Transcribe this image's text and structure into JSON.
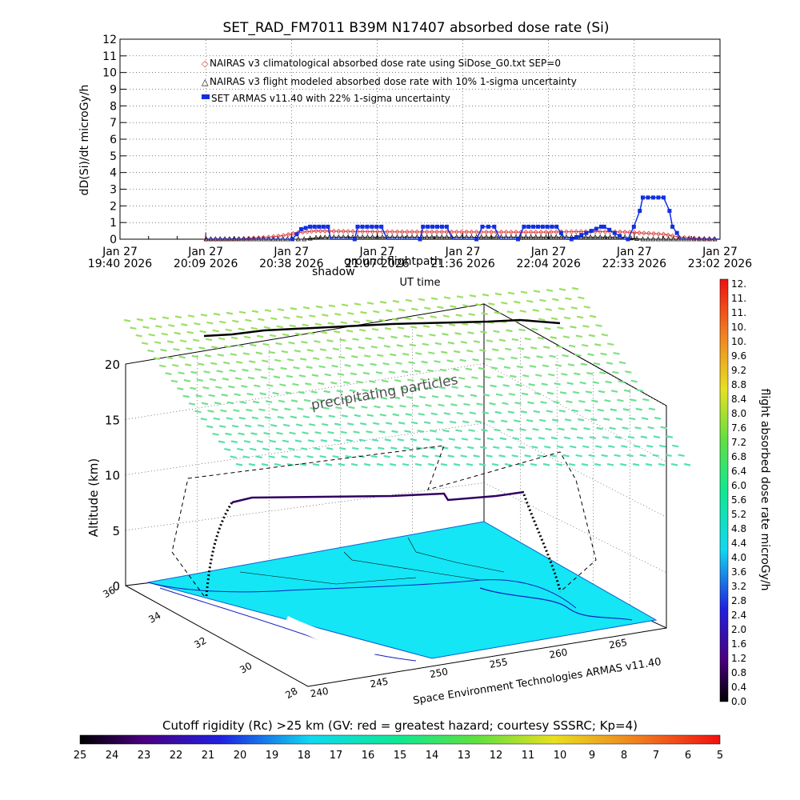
{
  "chart_data": [
    {
      "type": "line",
      "title": "SET_RAD_FM7011  B39M N17407 absorbed dose rate (Si)",
      "xlabel": "UT time",
      "ylabel": "dD(Si)/dt microGy/h",
      "ylim": [
        0,
        12
      ],
      "yticks": [
        "0",
        "1",
        "2",
        "3",
        "4",
        "5",
        "6",
        "7",
        "8",
        "9",
        "10",
        "11",
        "12"
      ],
      "xticks": [
        {
          "date": "Jan 27",
          "time": "19:40 2026"
        },
        {
          "date": "Jan 27",
          "time": "20:09 2026"
        },
        {
          "date": "Jan 27",
          "time": "20:38 2026"
        },
        {
          "date": "Jan 27",
          "time": "21:07 2026"
        },
        {
          "date": "Jan 27",
          "time": "21:36 2026"
        },
        {
          "date": "Jan 27",
          "time": "22:04 2026"
        },
        {
          "date": "Jan 27",
          "time": "22:33 2026"
        },
        {
          "date": "Jan 27",
          "time": "23:02 2026"
        }
      ],
      "xrange_min": [
        0,
        202
      ],
      "overlay_labels": [
        "shadow",
        "ground flightpath"
      ],
      "series": [
        {
          "name": "NAIRAS v3 climatological absorbed dose rate using SiDose_G0.txt SEP=0",
          "color": "#e04040",
          "marker": "diamond",
          "x": [
            29,
            40,
            50,
            55,
            60,
            66,
            72,
            80,
            95,
            110,
            125,
            140,
            152,
            160,
            170,
            178,
            183,
            186,
            190,
            195,
            200,
            202
          ],
          "values": [
            0.0,
            0.02,
            0.12,
            0.22,
            0.4,
            0.5,
            0.48,
            0.46,
            0.44,
            0.44,
            0.43,
            0.42,
            0.45,
            0.46,
            0.43,
            0.35,
            0.3,
            0.2,
            0.1,
            0.04,
            0.01,
            0.0
          ]
        },
        {
          "name": "NAIRAS v3 flight modeled absorbed dose rate with 10% 1-sigma uncertainty",
          "color": "#000000",
          "marker": "triangle",
          "x": [
            29,
            40,
            50,
            58,
            62,
            66,
            72,
            80,
            95,
            110,
            125,
            140,
            152,
            160,
            170,
            172,
            176,
            183,
            188,
            195,
            202
          ],
          "values": [
            0.0,
            0.0,
            0.0,
            0.0,
            0.0,
            0.08,
            0.12,
            0.12,
            0.12,
            0.12,
            0.12,
            0.12,
            0.12,
            0.12,
            0.12,
            0.05,
            0.0,
            0.0,
            0.0,
            0.0,
            0.0
          ]
        },
        {
          "name": "SET ARMAS v11.40 with 22% 1-sigma uncertainty",
          "color": "#1030e0",
          "marker": "square",
          "x": [
            29,
            58,
            61,
            64,
            70,
            71,
            79,
            80,
            88,
            90,
            101,
            102,
            110,
            112,
            120,
            122,
            126,
            128,
            134,
            136,
            147,
            150,
            152,
            162,
            163,
            170,
            171,
            173,
            175,
            176,
            183,
            185,
            186,
            189,
            191,
            195,
            202
          ],
          "values": [
            0,
            0,
            0.6,
            0.75,
            0.75,
            0,
            0,
            0.75,
            0.75,
            0,
            0,
            0.75,
            0.75,
            0,
            0,
            0.75,
            0.75,
            0,
            0,
            0.75,
            0.75,
            0,
            0,
            0.75,
            0.75,
            0,
            0,
            0.75,
            1.7,
            2.5,
            2.5,
            1.7,
            0.75,
            0,
            0,
            0,
            0
          ]
        }
      ]
    },
    {
      "type": "surface3d",
      "ylabel": "Altitude (km)",
      "zticks": [
        "0",
        "5",
        "10",
        "15",
        "20"
      ],
      "lat_ticks": [
        "36",
        "34",
        "32",
        "30",
        "28"
      ],
      "lon_ticks": [
        "240",
        "245",
        "250",
        "255",
        "260",
        "265"
      ],
      "caption": "Space Environment Technologies ARMAS v11.40",
      "annotation": "precipitating particles",
      "flight_altitude_km": 7.5,
      "cutoff_colorbar": {
        "title": "Cutoff rigidity (Rc) >25 km (GV: red = greatest hazard; courtesy SSSRC; Kp=4)",
        "ticks": [
          "25",
          "24",
          "23",
          "22",
          "21",
          "20",
          "19",
          "18",
          "17",
          "16",
          "15",
          "14",
          "13",
          "12",
          "11",
          "10",
          "9",
          "8",
          "7",
          "6",
          "5"
        ]
      },
      "dose_colorbar": {
        "title": "flight absorbed dose rate microGy/h",
        "ticks": [
          "12.",
          "11.",
          "11.",
          "10.",
          "10.",
          "9.6",
          "9.2",
          "8.8",
          "8.4",
          "8.0",
          "7.6",
          "7.2",
          "6.8",
          "6.4",
          "6.0",
          "5.6",
          "5.2",
          "4.8",
          "4.4",
          "4.0",
          "3.6",
          "3.2",
          "2.8",
          "2.4",
          "2.0",
          "1.6",
          "1.2",
          "0.8",
          "0.4",
          "0.0"
        ]
      },
      "colors": {
        "ground": "#14e6f5",
        "particles": "#60e070",
        "flightpath": "#000000"
      }
    }
  ]
}
